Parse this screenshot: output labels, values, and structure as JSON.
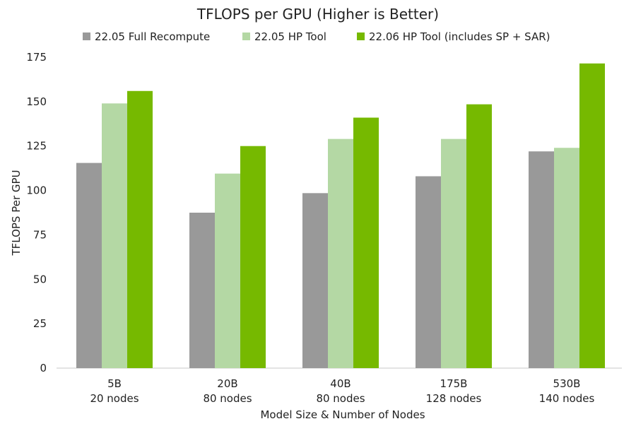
{
  "chart_data": {
    "type": "bar",
    "title": "TFLOPS per GPU (Higher is Better)",
    "xlabel": "Model Size & Number of Nodes",
    "ylabel": "TFLOPS Per GPU",
    "ylim": [
      0,
      175
    ],
    "yticks": [
      0,
      25,
      50,
      75,
      100,
      125,
      150,
      175
    ],
    "grid": false,
    "legend_position": "top",
    "categories": [
      [
        "5B",
        "20 nodes"
      ],
      [
        "20B",
        "80 nodes"
      ],
      [
        "40B",
        "80 nodes"
      ],
      [
        "175B",
        "128 nodes"
      ],
      [
        "530B",
        "140 nodes"
      ]
    ],
    "series": [
      {
        "name": "22.05 Full Recompute",
        "color": "#999999",
        "values": [
          115.5,
          87.5,
          98.5,
          108,
          122
        ]
      },
      {
        "name": "22.05 HP Tool",
        "color": "#b4d8a4",
        "values": [
          149,
          109.5,
          129,
          129,
          124
        ]
      },
      {
        "name": "22.06 HP Tool (includes SP + SAR)",
        "color": "#76b900",
        "values": [
          156,
          125,
          141,
          148.5,
          171.5
        ]
      }
    ]
  }
}
